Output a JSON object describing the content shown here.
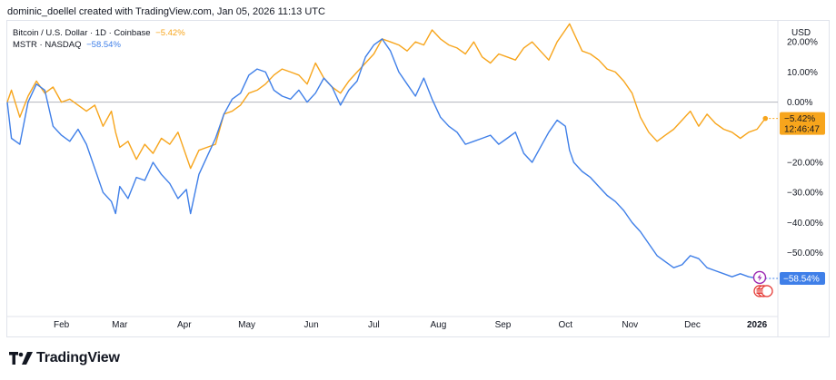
{
  "header": {
    "caption": "dominic_doellel created with TradingView.com, Jan 05, 2026 11:13 UTC"
  },
  "legend": {
    "btc": {
      "label": "Bitcoin / U.S. Dollar · 1D · Coinbase",
      "change": "−5.42%"
    },
    "mstr": {
      "label": "MSTR · NASDAQ",
      "change": "−58.54%"
    }
  },
  "axis": {
    "currency": "USD"
  },
  "footer": {
    "brand": "TradingView",
    "logo": "tradingview-logo-icon"
  },
  "colors": {
    "btc": "#f7a51c",
    "mstr": "#3f7fe8",
    "text": "#131722",
    "baseline": "#b2b5be",
    "grid": "#e0e3eb"
  },
  "chart_data": {
    "type": "line",
    "xlim": [
      0,
      370
    ],
    "ylim": [
      -70,
      27
    ],
    "ylabel": "",
    "xlabel": "",
    "grid": false,
    "x_ticks": [
      {
        "label": "Feb",
        "x": 26
      },
      {
        "label": "Mar",
        "x": 54
      },
      {
        "label": "Apr",
        "x": 85
      },
      {
        "label": "May",
        "x": 115
      },
      {
        "label": "Jun",
        "x": 146
      },
      {
        "label": "Jul",
        "x": 176
      },
      {
        "label": "Aug",
        "x": 207
      },
      {
        "label": "Sep",
        "x": 238
      },
      {
        "label": "Oct",
        "x": 268
      },
      {
        "label": "Nov",
        "x": 299
      },
      {
        "label": "Dec",
        "x": 329
      },
      {
        "label": "2026",
        "x": 360
      }
    ],
    "y_ticks": [
      {
        "label": "20.00%",
        "v": 20
      },
      {
        "label": "10.00%",
        "v": 10
      },
      {
        "label": "0.00%",
        "v": 0
      },
      {
        "label": "−20.00%",
        "v": -20
      },
      {
        "label": "−30.00%",
        "v": -30
      },
      {
        "label": "−40.00%",
        "v": -40
      },
      {
        "label": "−50.00%",
        "v": -50
      }
    ],
    "price_labels": [
      {
        "series": "Bitcoin / U.S. Dollar",
        "value": -5.42,
        "label": "−5.42%",
        "timer": "12:46:47"
      },
      {
        "series": "MSTR · NASDAQ",
        "value": -58.54,
        "label": "−58.54%"
      }
    ],
    "series": [
      {
        "name": "Bitcoin / U.S. Dollar",
        "x": [
          0,
          2,
          6,
          10,
          14,
          18,
          22,
          26,
          30,
          34,
          38,
          42,
          46,
          50,
          52,
          54,
          58,
          62,
          66,
          70,
          74,
          78,
          82,
          86,
          88,
          92,
          96,
          100,
          104,
          108,
          112,
          116,
          120,
          124,
          128,
          132,
          136,
          140,
          144,
          148,
          152,
          156,
          160,
          164,
          168,
          172,
          176,
          180,
          184,
          188,
          192,
          196,
          200,
          204,
          208,
          212,
          216,
          220,
          224,
          228,
          232,
          236,
          240,
          244,
          248,
          252,
          256,
          260,
          264,
          268,
          270,
          272,
          276,
          280,
          284,
          288,
          292,
          296,
          300,
          304,
          308,
          312,
          316,
          320,
          324,
          328,
          332,
          336,
          340,
          344,
          348,
          352,
          356,
          360,
          364
        ],
        "y": [
          0,
          4,
          -5,
          2,
          7,
          3,
          5,
          0,
          1,
          -1,
          -3,
          -1,
          -8,
          -3,
          -10,
          -15,
          -13,
          -19,
          -14,
          -17,
          -12,
          -14,
          -10,
          -18,
          -22,
          -16,
          -15,
          -14,
          -4,
          -3,
          -1,
          3,
          4,
          6,
          9,
          11,
          10,
          9,
          6,
          13,
          8,
          5,
          3,
          7,
          10,
          13,
          16,
          21,
          20,
          19,
          17,
          20,
          19,
          24,
          21,
          19,
          18,
          16,
          20,
          15,
          13,
          16,
          15,
          14,
          18,
          20,
          17,
          14,
          20,
          24,
          26,
          23,
          17,
          16,
          14,
          11,
          10,
          7,
          3,
          -5,
          -10,
          -13,
          -11,
          -9,
          -6,
          -3,
          -8,
          -4,
          -7,
          -9,
          -10,
          -12,
          -10,
          -9,
          -5.42
        ]
      },
      {
        "name": "MSTR · NASDAQ",
        "x": [
          0,
          2,
          6,
          10,
          14,
          18,
          22,
          26,
          30,
          34,
          38,
          42,
          46,
          50,
          52,
          54,
          58,
          62,
          66,
          70,
          74,
          78,
          82,
          86,
          88,
          92,
          96,
          100,
          104,
          108,
          112,
          116,
          120,
          124,
          128,
          132,
          136,
          140,
          144,
          148,
          152,
          156,
          160,
          164,
          168,
          172,
          176,
          180,
          184,
          188,
          192,
          196,
          200,
          204,
          208,
          212,
          216,
          220,
          224,
          228,
          232,
          236,
          240,
          244,
          248,
          252,
          256,
          260,
          264,
          268,
          270,
          272,
          276,
          280,
          284,
          288,
          292,
          296,
          300,
          304,
          308,
          312,
          316,
          320,
          324,
          328,
          332,
          336,
          340,
          344,
          348,
          352,
          356,
          360,
          364
        ],
        "y": [
          0,
          -12,
          -14,
          0,
          6,
          4,
          -8,
          -11,
          -13,
          -9,
          -14,
          -22,
          -30,
          -33,
          -37,
          -28,
          -32,
          -25,
          -26,
          -20,
          -24,
          -27,
          -32,
          -29,
          -37,
          -24,
          -18,
          -12,
          -4,
          1,
          3,
          9,
          11,
          10,
          4,
          2,
          1,
          4,
          0,
          3,
          8,
          5,
          -1,
          4,
          7,
          15,
          19,
          21,
          17,
          10,
          6,
          2,
          8,
          1,
          -5,
          -8,
          -10,
          -14,
          -13,
          -12,
          -11,
          -14,
          -12,
          -10,
          -17,
          -20,
          -15,
          -10,
          -6,
          -8,
          -16,
          -20,
          -23,
          -25,
          -28,
          -31,
          -33,
          -36,
          -40,
          -43,
          -47,
          -51,
          -53,
          -55,
          -54,
          -51,
          -52,
          -55,
          -56,
          -57,
          -58,
          -57,
          -58,
          -58.5,
          -58.54
        ]
      }
    ]
  }
}
